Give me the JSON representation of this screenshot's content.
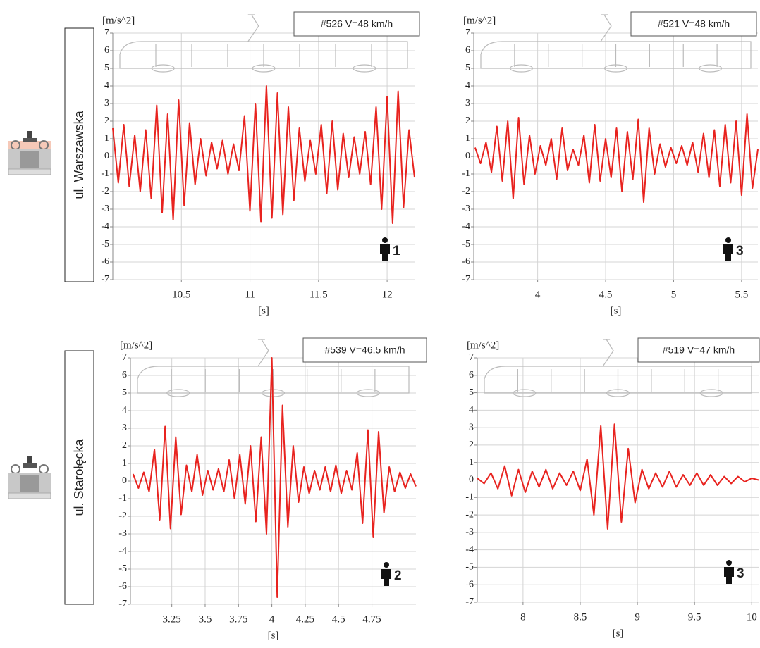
{
  "row_labels": [
    "ul. Warszawska",
    "ul. Starołęcka"
  ],
  "chart_data": [
    {
      "type": "line",
      "y_label": "[m/s^2]",
      "x_label": "[s]",
      "annotation": "#526 V=48 km/h",
      "marker_label": "1",
      "xlim": [
        10.0,
        12.2
      ],
      "xticks": [
        10.5,
        11,
        11.5,
        12
      ],
      "ylim": [
        -7,
        7
      ],
      "yticks": [
        -7,
        -6,
        -5,
        -4,
        -3,
        -2,
        -1,
        0,
        1,
        2,
        3,
        4,
        5,
        6,
        7
      ],
      "grid": true,
      "x": [
        10.0,
        10.04,
        10.08,
        10.12,
        10.16,
        10.2,
        10.24,
        10.28,
        10.32,
        10.36,
        10.4,
        10.44,
        10.48,
        10.52,
        10.56,
        10.6,
        10.64,
        10.68,
        10.72,
        10.76,
        10.8,
        10.84,
        10.88,
        10.92,
        10.96,
        11.0,
        11.04,
        11.08,
        11.12,
        11.16,
        11.2,
        11.24,
        11.28,
        11.32,
        11.36,
        11.4,
        11.44,
        11.48,
        11.52,
        11.56,
        11.6,
        11.64,
        11.68,
        11.72,
        11.76,
        11.8,
        11.84,
        11.88,
        11.92,
        11.96,
        12.0,
        12.04,
        12.08,
        12.12,
        12.16,
        12.2
      ],
      "series": [
        {
          "color": "#e8231f",
          "values": [
            1.6,
            -1.5,
            1.8,
            -1.7,
            1.2,
            -2.0,
            1.5,
            -2.4,
            2.9,
            -3.2,
            2.4,
            -3.6,
            3.2,
            -2.8,
            1.9,
            -1.6,
            1.0,
            -1.1,
            0.8,
            -0.7,
            0.9,
            -1.0,
            0.7,
            -0.8,
            2.3,
            -3.1,
            3.0,
            -3.7,
            4.0,
            -3.5,
            3.6,
            -3.3,
            2.8,
            -2.5,
            1.6,
            -1.4,
            0.9,
            -1.0,
            1.8,
            -2.1,
            2.0,
            -1.9,
            1.3,
            -1.2,
            1.1,
            -1.0,
            1.4,
            -1.6,
            2.8,
            -3.0,
            3.4,
            -3.8,
            3.7,
            -2.9,
            1.5,
            -1.2
          ]
        }
      ]
    },
    {
      "type": "line",
      "y_label": "[m/s^2]",
      "x_label": "[s]",
      "annotation": "#521 V=48 km/h",
      "marker_label": "3",
      "xlim": [
        3.53,
        5.62
      ],
      "xticks": [
        4,
        4.5,
        5,
        5.5
      ],
      "ylim": [
        -7,
        7
      ],
      "yticks": [
        -7,
        -6,
        -5,
        -4,
        -3,
        -2,
        -1,
        0,
        1,
        2,
        3,
        4,
        5,
        6,
        7
      ],
      "grid": true,
      "x": [
        3.54,
        3.58,
        3.62,
        3.66,
        3.7,
        3.74,
        3.78,
        3.82,
        3.86,
        3.9,
        3.94,
        3.98,
        4.02,
        4.06,
        4.1,
        4.14,
        4.18,
        4.22,
        4.26,
        4.3,
        4.34,
        4.38,
        4.42,
        4.46,
        4.5,
        4.54,
        4.58,
        4.62,
        4.66,
        4.7,
        4.74,
        4.78,
        4.82,
        4.86,
        4.9,
        4.94,
        4.98,
        5.02,
        5.06,
        5.1,
        5.14,
        5.18,
        5.22,
        5.26,
        5.3,
        5.34,
        5.38,
        5.42,
        5.46,
        5.5,
        5.54,
        5.58,
        5.62
      ],
      "series": [
        {
          "color": "#e8231f",
          "values": [
            0.5,
            -0.4,
            0.8,
            -0.9,
            1.7,
            -1.4,
            2.0,
            -2.4,
            2.2,
            -1.6,
            1.2,
            -1.0,
            0.6,
            -0.5,
            1.0,
            -1.3,
            1.6,
            -0.8,
            0.4,
            -0.5,
            1.2,
            -1.5,
            1.8,
            -1.4,
            1.0,
            -1.2,
            1.6,
            -2.0,
            1.4,
            -1.3,
            2.1,
            -2.6,
            1.6,
            -1.0,
            0.7,
            -0.6,
            0.5,
            -0.4,
            0.6,
            -0.5,
            0.8,
            -0.9,
            1.3,
            -1.2,
            1.5,
            -1.7,
            1.8,
            -1.5,
            2.0,
            -2.2,
            2.4,
            -1.8,
            0.4
          ]
        }
      ]
    },
    {
      "type": "line",
      "y_label": "[m/s^2]",
      "x_label": "[s]",
      "annotation": "#539 V=46.5 km/h",
      "marker_label": "2",
      "xlim": [
        2.94,
        5.08
      ],
      "xticks": [
        3.25,
        3.5,
        3.75,
        4,
        4.25,
        4.5,
        4.75
      ],
      "ylim": [
        -7,
        7
      ],
      "yticks": [
        -7,
        -6,
        -5,
        -4,
        -3,
        -2,
        -1,
        0,
        1,
        2,
        3,
        4,
        5,
        6,
        7
      ],
      "grid": true,
      "x": [
        2.96,
        3.0,
        3.04,
        3.08,
        3.12,
        3.16,
        3.2,
        3.24,
        3.28,
        3.32,
        3.36,
        3.4,
        3.44,
        3.48,
        3.52,
        3.56,
        3.6,
        3.64,
        3.68,
        3.72,
        3.76,
        3.8,
        3.84,
        3.88,
        3.92,
        3.96,
        4.0,
        4.04,
        4.08,
        4.12,
        4.16,
        4.2,
        4.24,
        4.28,
        4.32,
        4.36,
        4.4,
        4.44,
        4.48,
        4.52,
        4.56,
        4.6,
        4.64,
        4.68,
        4.72,
        4.76,
        4.8,
        4.84,
        4.88,
        4.92,
        4.96,
        5.0,
        5.04,
        5.08
      ],
      "series": [
        {
          "color": "#e8231f",
          "values": [
            0.4,
            -0.4,
            0.5,
            -0.6,
            1.8,
            -2.2,
            3.1,
            -2.7,
            2.5,
            -1.9,
            0.9,
            -0.6,
            1.5,
            -0.8,
            0.6,
            -0.5,
            0.7,
            -0.6,
            1.2,
            -1.0,
            1.5,
            -1.3,
            2.0,
            -2.3,
            2.5,
            -3.0,
            7.0,
            -6.6,
            4.3,
            -2.6,
            2.0,
            -1.2,
            0.8,
            -0.7,
            0.6,
            -0.5,
            0.8,
            -0.6,
            0.9,
            -0.7,
            0.6,
            -0.5,
            1.6,
            -2.4,
            2.9,
            -3.2,
            2.8,
            -1.8,
            0.8,
            -0.6,
            0.5,
            -0.4,
            0.4,
            -0.3
          ]
        }
      ]
    },
    {
      "type": "line",
      "y_label": "[m/s^2]",
      "x_label": "[s]",
      "annotation": "#519 V=47 km/h",
      "marker_label": "3",
      "xlim": [
        7.6,
        10.06
      ],
      "xticks": [
        8,
        8.5,
        9,
        9.5,
        10
      ],
      "ylim": [
        -7,
        7
      ],
      "yticks": [
        -7,
        -6,
        -5,
        -4,
        -3,
        -2,
        -1,
        0,
        1,
        2,
        3,
        4,
        5,
        6,
        7
      ],
      "grid": true,
      "x": [
        7.6,
        7.66,
        7.72,
        7.78,
        7.84,
        7.9,
        7.96,
        8.02,
        8.08,
        8.14,
        8.2,
        8.26,
        8.32,
        8.38,
        8.44,
        8.5,
        8.56,
        8.62,
        8.68,
        8.74,
        8.8,
        8.86,
        8.92,
        8.98,
        9.04,
        9.1,
        9.16,
        9.22,
        9.28,
        9.34,
        9.4,
        9.46,
        9.52,
        9.58,
        9.64,
        9.7,
        9.76,
        9.82,
        9.88,
        9.94,
        10.0,
        10.06
      ],
      "series": [
        {
          "color": "#e8231f",
          "values": [
            0.1,
            -0.2,
            0.4,
            -0.5,
            0.8,
            -0.9,
            0.6,
            -0.7,
            0.5,
            -0.4,
            0.6,
            -0.5,
            0.4,
            -0.3,
            0.5,
            -0.6,
            1.2,
            -2.0,
            3.1,
            -2.8,
            3.2,
            -2.4,
            1.8,
            -1.3,
            0.6,
            -0.5,
            0.4,
            -0.4,
            0.5,
            -0.4,
            0.3,
            -0.3,
            0.4,
            -0.3,
            0.3,
            -0.3,
            0.2,
            -0.2,
            0.2,
            -0.1,
            0.1,
            0.0
          ]
        }
      ]
    }
  ]
}
